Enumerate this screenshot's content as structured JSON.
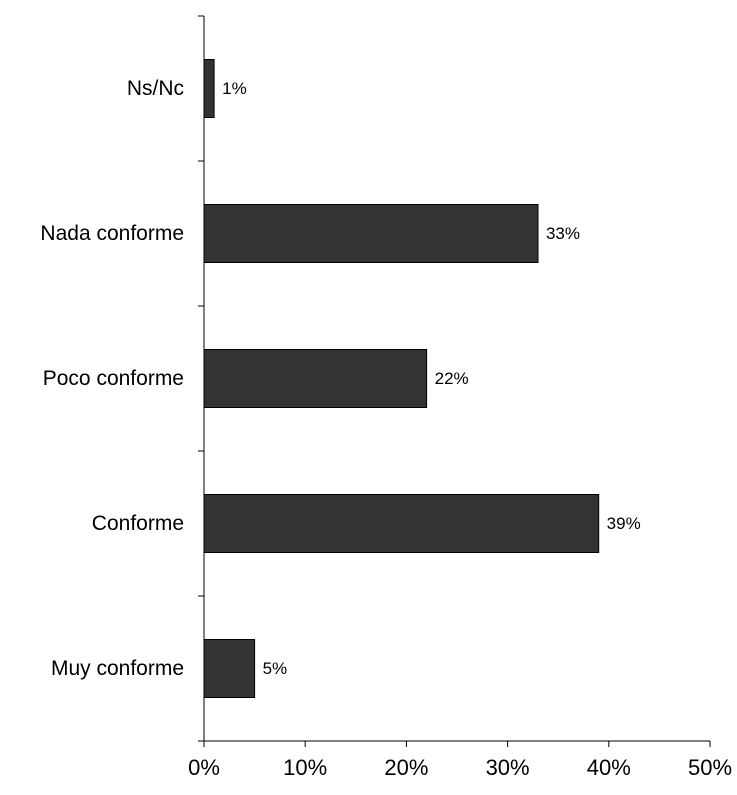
{
  "chart_data": {
    "type": "bar",
    "orientation": "horizontal",
    "categories": [
      "Ns/Nc",
      "Nada conforme",
      "Poco conforme",
      "Conforme",
      "Muy conforme"
    ],
    "values": [
      1,
      33,
      22,
      39,
      5
    ],
    "data_labels": [
      "1%",
      "33%",
      "22%",
      "39%",
      "5%"
    ],
    "x_ticks": [
      0,
      10,
      20,
      30,
      40,
      50
    ],
    "x_tick_labels": [
      "0%",
      "10%",
      "20%",
      "30%",
      "40%",
      "50%"
    ],
    "xlim": [
      0,
      50
    ],
    "grid": false,
    "legend": "none",
    "bar_color": "#333333",
    "bar_edge_color": "#000000"
  }
}
